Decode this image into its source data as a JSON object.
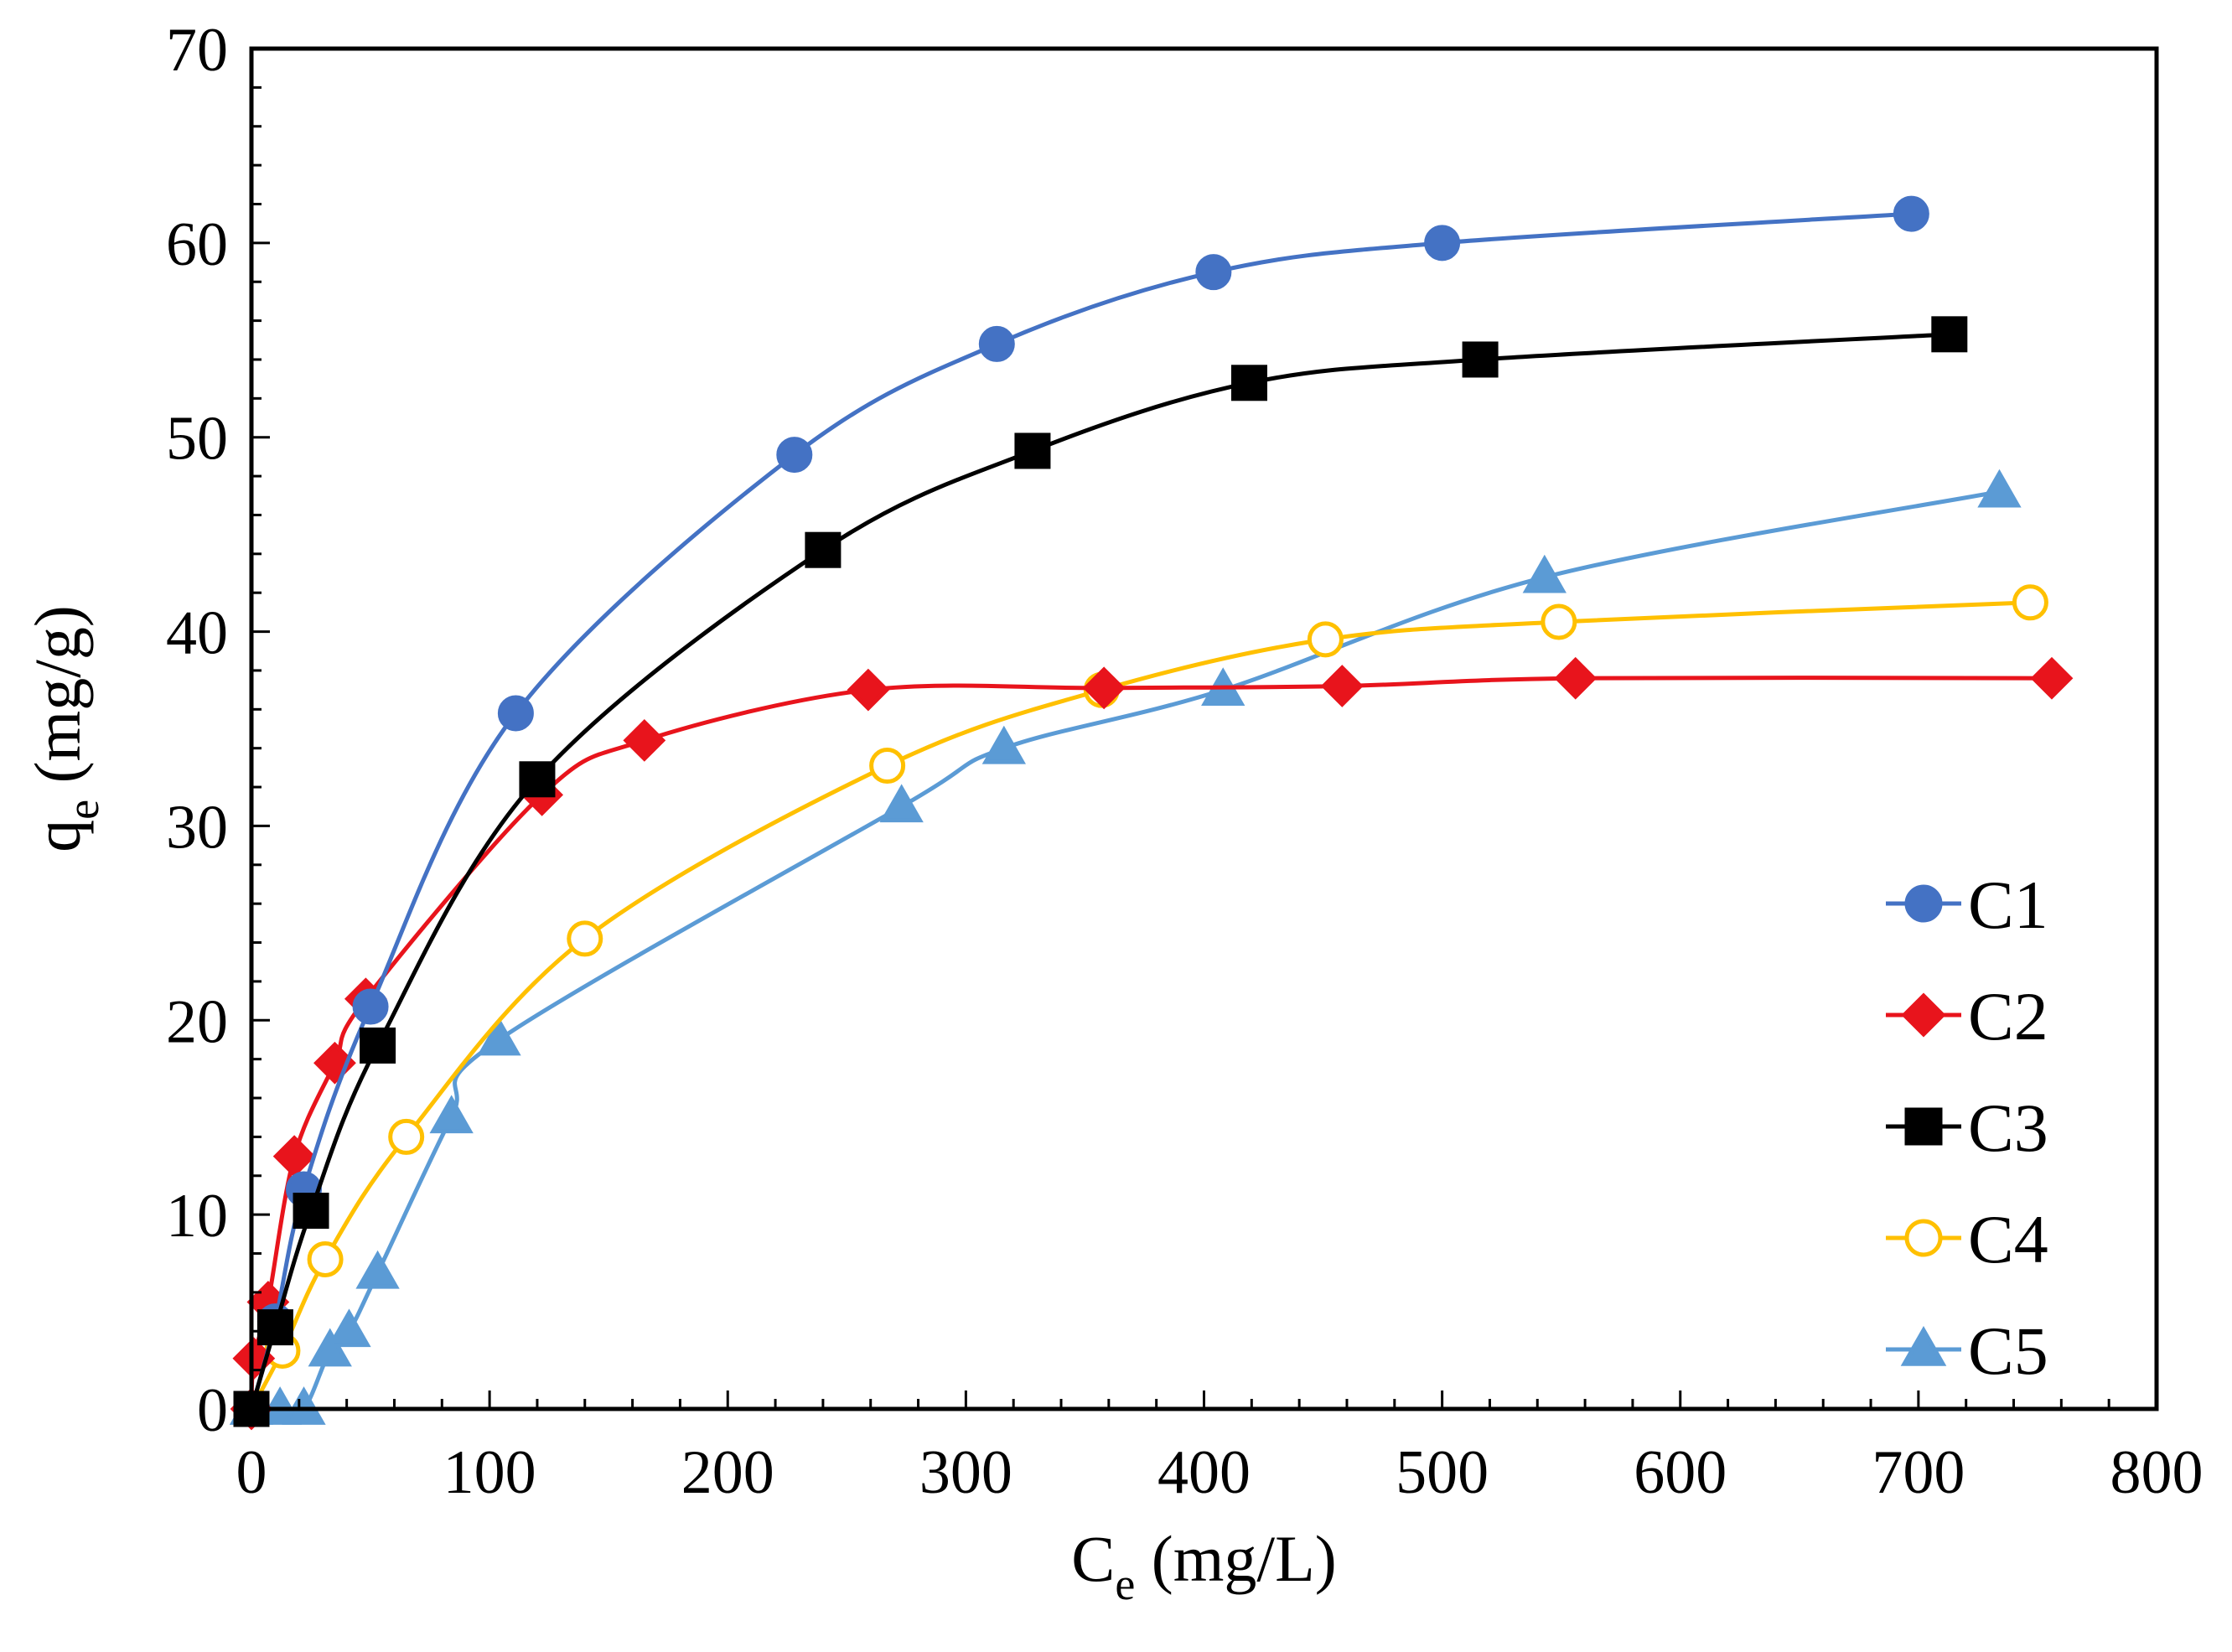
{
  "chart_data": {
    "type": "line",
    "title": "",
    "xlabel": {
      "main": "C",
      "sub": "e",
      "unit": " (mg/L)"
    },
    "ylabel": {
      "main": "q",
      "sub": "e",
      "unit": " (mg/g)"
    },
    "xlim": [
      0,
      800
    ],
    "ylim": [
      0,
      70
    ],
    "x_major_ticks": [
      0,
      100,
      200,
      300,
      400,
      500,
      600,
      700,
      800
    ],
    "y_major_ticks": [
      0,
      10,
      20,
      30,
      40,
      50,
      60,
      70
    ],
    "x_tick_labels": [
      "0",
      "100",
      "200",
      "300",
      "400",
      "500",
      "600",
      "700",
      "800"
    ],
    "y_tick_labels": [
      "0",
      "10",
      "20",
      "30",
      "40",
      "50",
      "60",
      "70"
    ],
    "grid": false,
    "legend_position": "bottom-right",
    "series": [
      {
        "name": "C1",
        "color": "#4472C4",
        "marker": "circle",
        "fill": true,
        "points": [
          [
            0,
            0
          ],
          [
            10,
            4.5
          ],
          [
            22,
            11.3
          ],
          [
            50,
            20.7
          ],
          [
            111,
            35.8
          ],
          [
            228,
            49.1
          ],
          [
            313,
            54.8
          ],
          [
            404,
            58.5
          ],
          [
            500,
            60.0
          ],
          [
            697,
            61.5
          ]
        ]
      },
      {
        "name": "C2",
        "color": "#E8141C",
        "marker": "diamond",
        "fill": true,
        "points": [
          [
            0,
            0
          ],
          [
            1,
            2.6
          ],
          [
            7,
            5.5
          ],
          [
            18,
            13.0
          ],
          [
            35,
            17.8
          ],
          [
            48,
            21.1
          ],
          [
            122,
            31.6
          ],
          [
            165,
            34.4
          ],
          [
            259,
            37.0
          ],
          [
            358,
            37.1
          ],
          [
            458,
            37.2
          ],
          [
            556,
            37.6
          ],
          [
            756,
            37.6
          ]
        ]
      },
      {
        "name": "C3",
        "color": "#000000",
        "marker": "square",
        "fill": true,
        "points": [
          [
            0,
            0
          ],
          [
            10,
            4.2
          ],
          [
            25,
            10.2
          ],
          [
            53,
            18.7
          ],
          [
            120,
            32.4
          ],
          [
            240,
            44.2
          ],
          [
            328,
            49.3
          ],
          [
            419,
            52.8
          ],
          [
            516,
            54.0
          ],
          [
            713,
            55.3
          ]
        ]
      },
      {
        "name": "C4",
        "color": "#FFC000",
        "marker": "circle",
        "fill": false,
        "points": [
          [
            0,
            0
          ],
          [
            13,
            3.0
          ],
          [
            31,
            7.7
          ],
          [
            65,
            14.0
          ],
          [
            140,
            24.2
          ],
          [
            267,
            33.1
          ],
          [
            357,
            37.0
          ],
          [
            451,
            39.6
          ],
          [
            549,
            40.5
          ],
          [
            747,
            41.5
          ]
        ]
      },
      {
        "name": "C5",
        "color": "#5B9BD5",
        "marker": "triangle",
        "fill": true,
        "points": [
          [
            0,
            0
          ],
          [
            12,
            0
          ],
          [
            22,
            0
          ],
          [
            33,
            3.0
          ],
          [
            41,
            4.0
          ],
          [
            53,
            7.0
          ],
          [
            84,
            15.0
          ],
          [
            104,
            19.0
          ],
          [
            273,
            31.0
          ],
          [
            316,
            34.0
          ],
          [
            408,
            37.0
          ],
          [
            543,
            42.8
          ],
          [
            734,
            47.2
          ]
        ]
      }
    ]
  }
}
